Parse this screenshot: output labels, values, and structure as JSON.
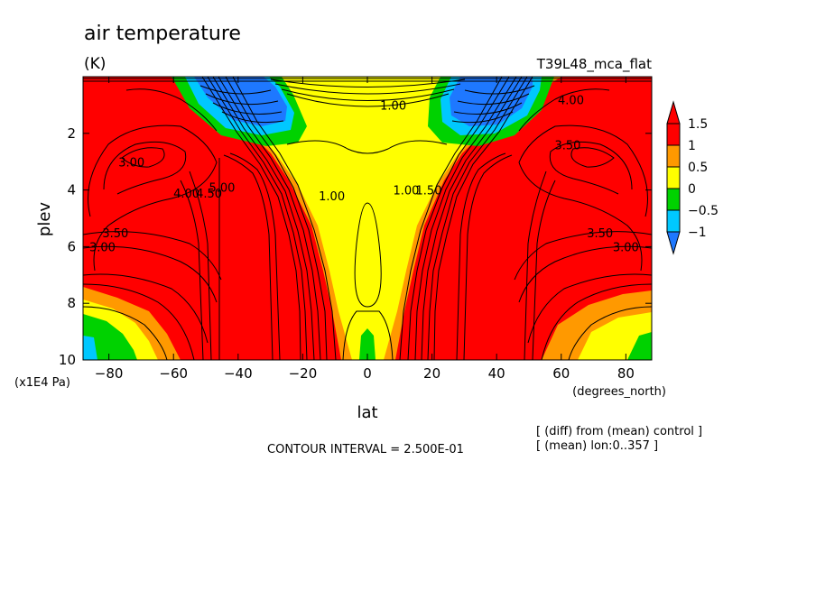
{
  "chart_data": {
    "type": "heatmap",
    "subtype": "filled-contour",
    "title": "air temperature",
    "units": "(K)",
    "experiment": "T39L48_mca_flat",
    "xlabel": "lat",
    "xunits": "(degrees_north)",
    "ylabel": "plev",
    "yunits": "(x1E4 Pa)",
    "xlim": [
      -88,
      88
    ],
    "ylim": [
      10,
      0
    ],
    "x_ticks": [
      -80,
      -60,
      -40,
      -20,
      0,
      20,
      40,
      60,
      80
    ],
    "x_tick_labels": [
      "−80",
      "−60",
      "−40",
      "−20",
      "0",
      "20",
      "40",
      "60",
      "80"
    ],
    "y_ticks": [
      2,
      4,
      6,
      8,
      10
    ],
    "y_tick_labels": [
      "2",
      "4",
      "6",
      "8",
      "10"
    ],
    "colorbar": {
      "levels": [
        -1,
        -0.5,
        0,
        0.5,
        1,
        1.5
      ],
      "labels": [
        "−1",
        "−0.5",
        "0",
        "0.5",
        "1",
        "1.5"
      ],
      "colors": [
        "#1e78ff",
        "#00c8ff",
        "#00d200",
        "#ffff00",
        "#ff9900",
        "#ff0000"
      ],
      "below_color": "#1e3cff",
      "above_color": "#ff0000"
    },
    "contour_labels": [
      {
        "text": "1.00",
        "lat": 8,
        "plev": 1.1
      },
      {
        "text": "3.00",
        "lat": -73,
        "plev": 3.1
      },
      {
        "text": "4.00",
        "lat": -56,
        "plev": 4.2
      },
      {
        "text": "4.50",
        "lat": -49,
        "plev": 4.2
      },
      {
        "text": "5.00",
        "lat": -45,
        "plev": 4.0
      },
      {
        "text": "3.50",
        "lat": -78,
        "plev": 5.6
      },
      {
        "text": "3.00",
        "lat": -82,
        "plev": 6.1
      },
      {
        "text": "1.00",
        "lat": -11,
        "plev": 4.3
      },
      {
        "text": "1.00",
        "lat": 12,
        "plev": 4.1
      },
      {
        "text": "1.50",
        "lat": 19,
        "plev": 4.1
      },
      {
        "text": "3.50",
        "lat": 62,
        "plev": 2.5
      },
      {
        "text": "4.00",
        "lat": 63,
        "plev": 0.9
      },
      {
        "text": "3.50",
        "lat": 72,
        "plev": 5.6
      },
      {
        "text": "3.00",
        "lat": 80,
        "plev": 6.1
      }
    ],
    "contour_interval": "CONTOUR INTERVAL = 2.500E-01",
    "notes": [
      "[ (diff) from (mean) control ]",
      "[ (mean) lon:0..357 ]"
    ]
  }
}
